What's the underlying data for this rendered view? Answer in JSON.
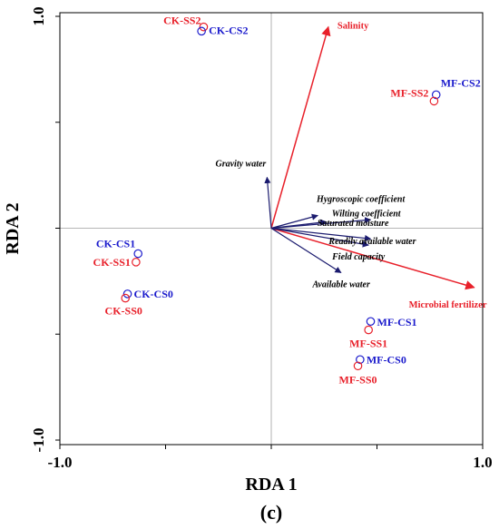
{
  "chart_data": {
    "type": "biplot",
    "panel_label": "(c)",
    "xlabel": "RDA 1",
    "ylabel": "RDA 2",
    "xlim": [
      -1.0,
      1.0
    ],
    "ylim": [
      -1.0,
      1.0
    ],
    "x_tick_labels": [
      {
        "value": -1.0,
        "label": "-1.0"
      },
      {
        "value": 1.0,
        "label": "1.0"
      }
    ],
    "y_tick_labels": [
      {
        "value": 1.0,
        "label": "1.0"
      },
      {
        "value": -1.0,
        "label": "-1.0"
      }
    ],
    "minor_ticks": [
      -1.0,
      -0.5,
      0.0,
      0.5,
      1.0
    ],
    "zero_lines": true,
    "colors": {
      "response_arrow": "#e8202a",
      "env_arrow": "#1a1a6e",
      "cs_sample": "#1a1acc",
      "ss_sample": "#e8202a",
      "axis": "#000000",
      "zero_line": "#9e9e9e"
    },
    "response_arrows": [
      {
        "label": "Salinity",
        "x": 0.27,
        "y": 0.95
      },
      {
        "label": "Microbial fertilizer",
        "x": 0.96,
        "y": -0.28
      }
    ],
    "env_arrows": [
      {
        "label": "Gravity water",
        "x": -0.02,
        "y": 0.24
      },
      {
        "label": "Hygroscopic coefficient",
        "x": 0.22,
        "y": 0.06
      },
      {
        "label": "Wilting coefficient",
        "x": 0.26,
        "y": 0.03
      },
      {
        "label": "Saturated moisture",
        "x": 0.47,
        "y": 0.04
      },
      {
        "label": "Readily available water",
        "x": 0.47,
        "y": -0.05
      },
      {
        "label": "Field capacity",
        "x": 0.46,
        "y": -0.08
      },
      {
        "label": "Available water",
        "x": 0.33,
        "y": -0.21
      }
    ],
    "samples": [
      {
        "label": "CK-SS2",
        "group": "ss",
        "x": -0.32,
        "y": 0.95
      },
      {
        "label": "CK-CS2",
        "group": "cs",
        "x": -0.33,
        "y": 0.93
      },
      {
        "label": "MF-CS2",
        "group": "cs",
        "x": 0.78,
        "y": 0.63
      },
      {
        "label": "MF-SS2",
        "group": "ss",
        "x": 0.77,
        "y": 0.6
      },
      {
        "label": "CK-CS1",
        "group": "cs",
        "x": -0.63,
        "y": -0.12
      },
      {
        "label": "CK-SS1",
        "group": "ss",
        "x": -0.64,
        "y": -0.16
      },
      {
        "label": "CK-CS0",
        "group": "cs",
        "x": -0.68,
        "y": -0.31
      },
      {
        "label": "CK-SS0",
        "group": "ss",
        "x": -0.69,
        "y": -0.33
      },
      {
        "label": "MF-CS1",
        "group": "cs",
        "x": 0.47,
        "y": -0.44
      },
      {
        "label": "MF-SS1",
        "group": "ss",
        "x": 0.46,
        "y": -0.48
      },
      {
        "label": "MF-CS0",
        "group": "cs",
        "x": 0.42,
        "y": -0.62
      },
      {
        "label": "MF-SS0",
        "group": "ss",
        "x": 0.41,
        "y": -0.65
      }
    ]
  }
}
